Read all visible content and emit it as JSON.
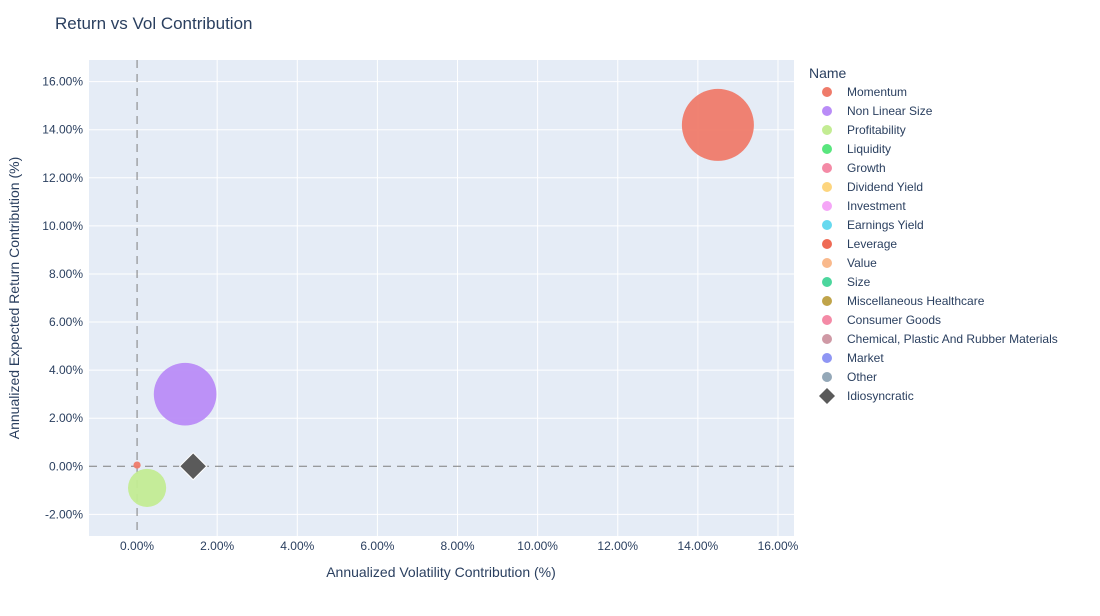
{
  "chart_data": {
    "type": "scatter",
    "title": "Return vs Vol Contribution",
    "xlabel": "Annualized Volatility Contribution (%)",
    "ylabel": "Annualized Expected Return Contribution (%)",
    "xlim": [
      -1.2,
      16.4
    ],
    "ylim": [
      -2.9,
      16.9
    ],
    "x_ticks": [
      0,
      2,
      4,
      6,
      8,
      10,
      12,
      14,
      16
    ],
    "y_ticks": [
      -2,
      0,
      2,
      4,
      6,
      8,
      10,
      12,
      14,
      16
    ],
    "tick_format": "percent_2dp",
    "grid": true,
    "reference_lines": {
      "x": 0,
      "y": 0,
      "style": "dashed"
    },
    "legend": {
      "title": "Name",
      "position": "right",
      "entries": [
        {
          "name": "Momentum",
          "color": "#ef7b6a",
          "marker": "circle"
        },
        {
          "name": "Non Linear Size",
          "color": "#b98cf7",
          "marker": "circle"
        },
        {
          "name": "Profitability",
          "color": "#c3ec93",
          "marker": "circle"
        },
        {
          "name": "Liquidity",
          "color": "#59e67e",
          "marker": "circle"
        },
        {
          "name": "Growth",
          "color": "#f48aa6",
          "marker": "circle"
        },
        {
          "name": "Dividend Yield",
          "color": "#fdd57e",
          "marker": "circle"
        },
        {
          "name": "Investment",
          "color": "#f5a6f7",
          "marker": "circle"
        },
        {
          "name": "Earnings Yield",
          "color": "#66d9ef",
          "marker": "circle"
        },
        {
          "name": "Leverage",
          "color": "#ef6a55",
          "marker": "circle"
        },
        {
          "name": "Value",
          "color": "#f9b98c",
          "marker": "circle"
        },
        {
          "name": "Size",
          "color": "#4cd69d",
          "marker": "circle"
        },
        {
          "name": "Miscellaneous Healthcare",
          "color": "#c0a44a",
          "marker": "circle"
        },
        {
          "name": "Consumer Goods",
          "color": "#f48aa6",
          "marker": "circle"
        },
        {
          "name": "Chemical, Plastic And Rubber Materials",
          "color": "#cf99a5",
          "marker": "circle"
        },
        {
          "name": "Market",
          "color": "#8f96f4",
          "marker": "circle"
        },
        {
          "name": "Other",
          "color": "#94a8b8",
          "marker": "circle"
        },
        {
          "name": "Idiosyncratic",
          "color": "#5a5a5a",
          "marker": "diamond"
        }
      ]
    },
    "series": [
      {
        "name": "Momentum",
        "x": 14.5,
        "y": 14.2,
        "size_rel": 1.0,
        "color": "#ef7b6a",
        "marker": "circle"
      },
      {
        "name": "Non Linear Size",
        "x": 1.2,
        "y": 3.0,
        "size_rel": 0.87,
        "color": "#b98cf7",
        "marker": "circle"
      },
      {
        "name": "Profitability",
        "x": 0.25,
        "y": -0.9,
        "size_rel": 0.53,
        "color": "#c3ec93",
        "marker": "circle"
      },
      {
        "name": "Momentum",
        "x": 0.0,
        "y": 0.05,
        "size_rel": 0.1,
        "color": "#ef7b6a",
        "marker": "circle"
      },
      {
        "name": "Idiosyncratic",
        "x": 1.4,
        "y": 0.0,
        "size_rel": 0.3,
        "color": "#5a5a5a",
        "marker": "diamond"
      }
    ]
  }
}
